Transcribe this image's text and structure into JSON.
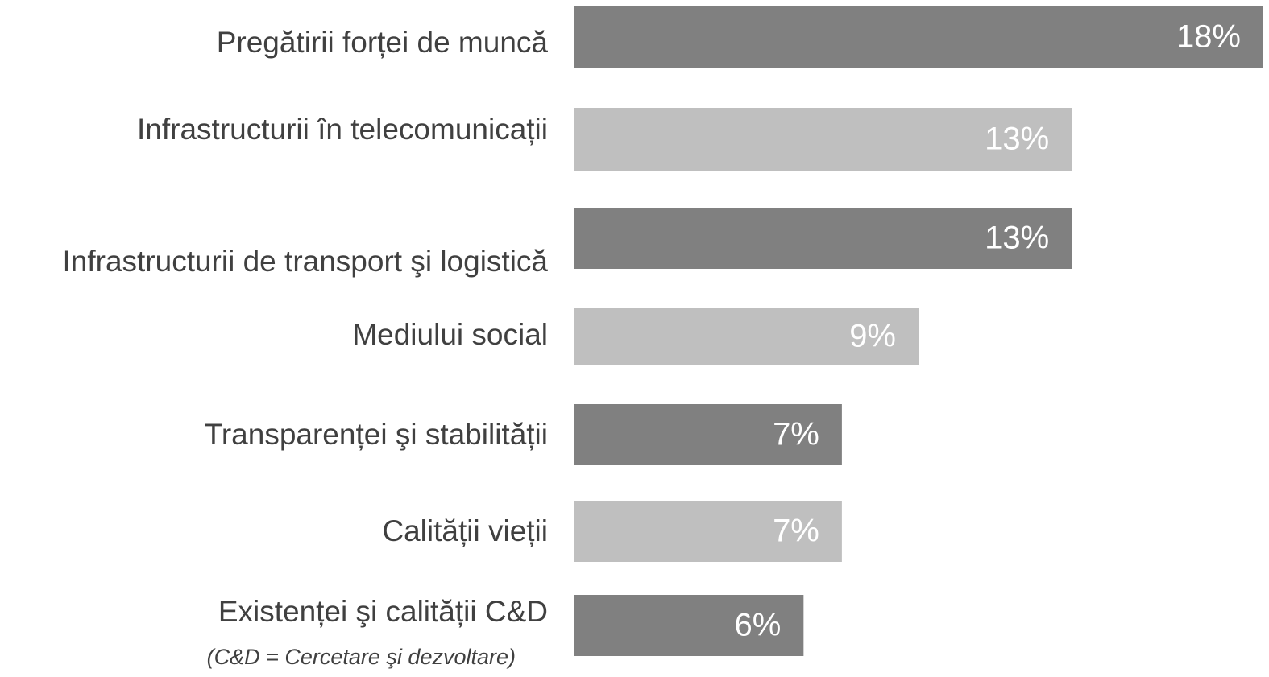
{
  "chart_data": {
    "type": "bar",
    "orientation": "horizontal",
    "categories": [
      "Pregătirii forței de muncă",
      "Infrastructurii în telecomunicații",
      "Infrastructurii de transport şi logistică",
      "Mediului social",
      "Transparenței şi stabilității",
      "Calității vieții",
      "Existenței şi calității C&D"
    ],
    "values": [
      18,
      13,
      13,
      9,
      7,
      7,
      6
    ],
    "value_labels": [
      "18%",
      "13%",
      "13%",
      "9%",
      "7%",
      "7%",
      "6%"
    ],
    "colors": [
      "#808080",
      "#bfbfbf",
      "#808080",
      "#bfbfbf",
      "#808080",
      "#bfbfbf",
      "#808080"
    ],
    "annotation": "(C&D =  Cercetare şi dezvoltare)"
  }
}
